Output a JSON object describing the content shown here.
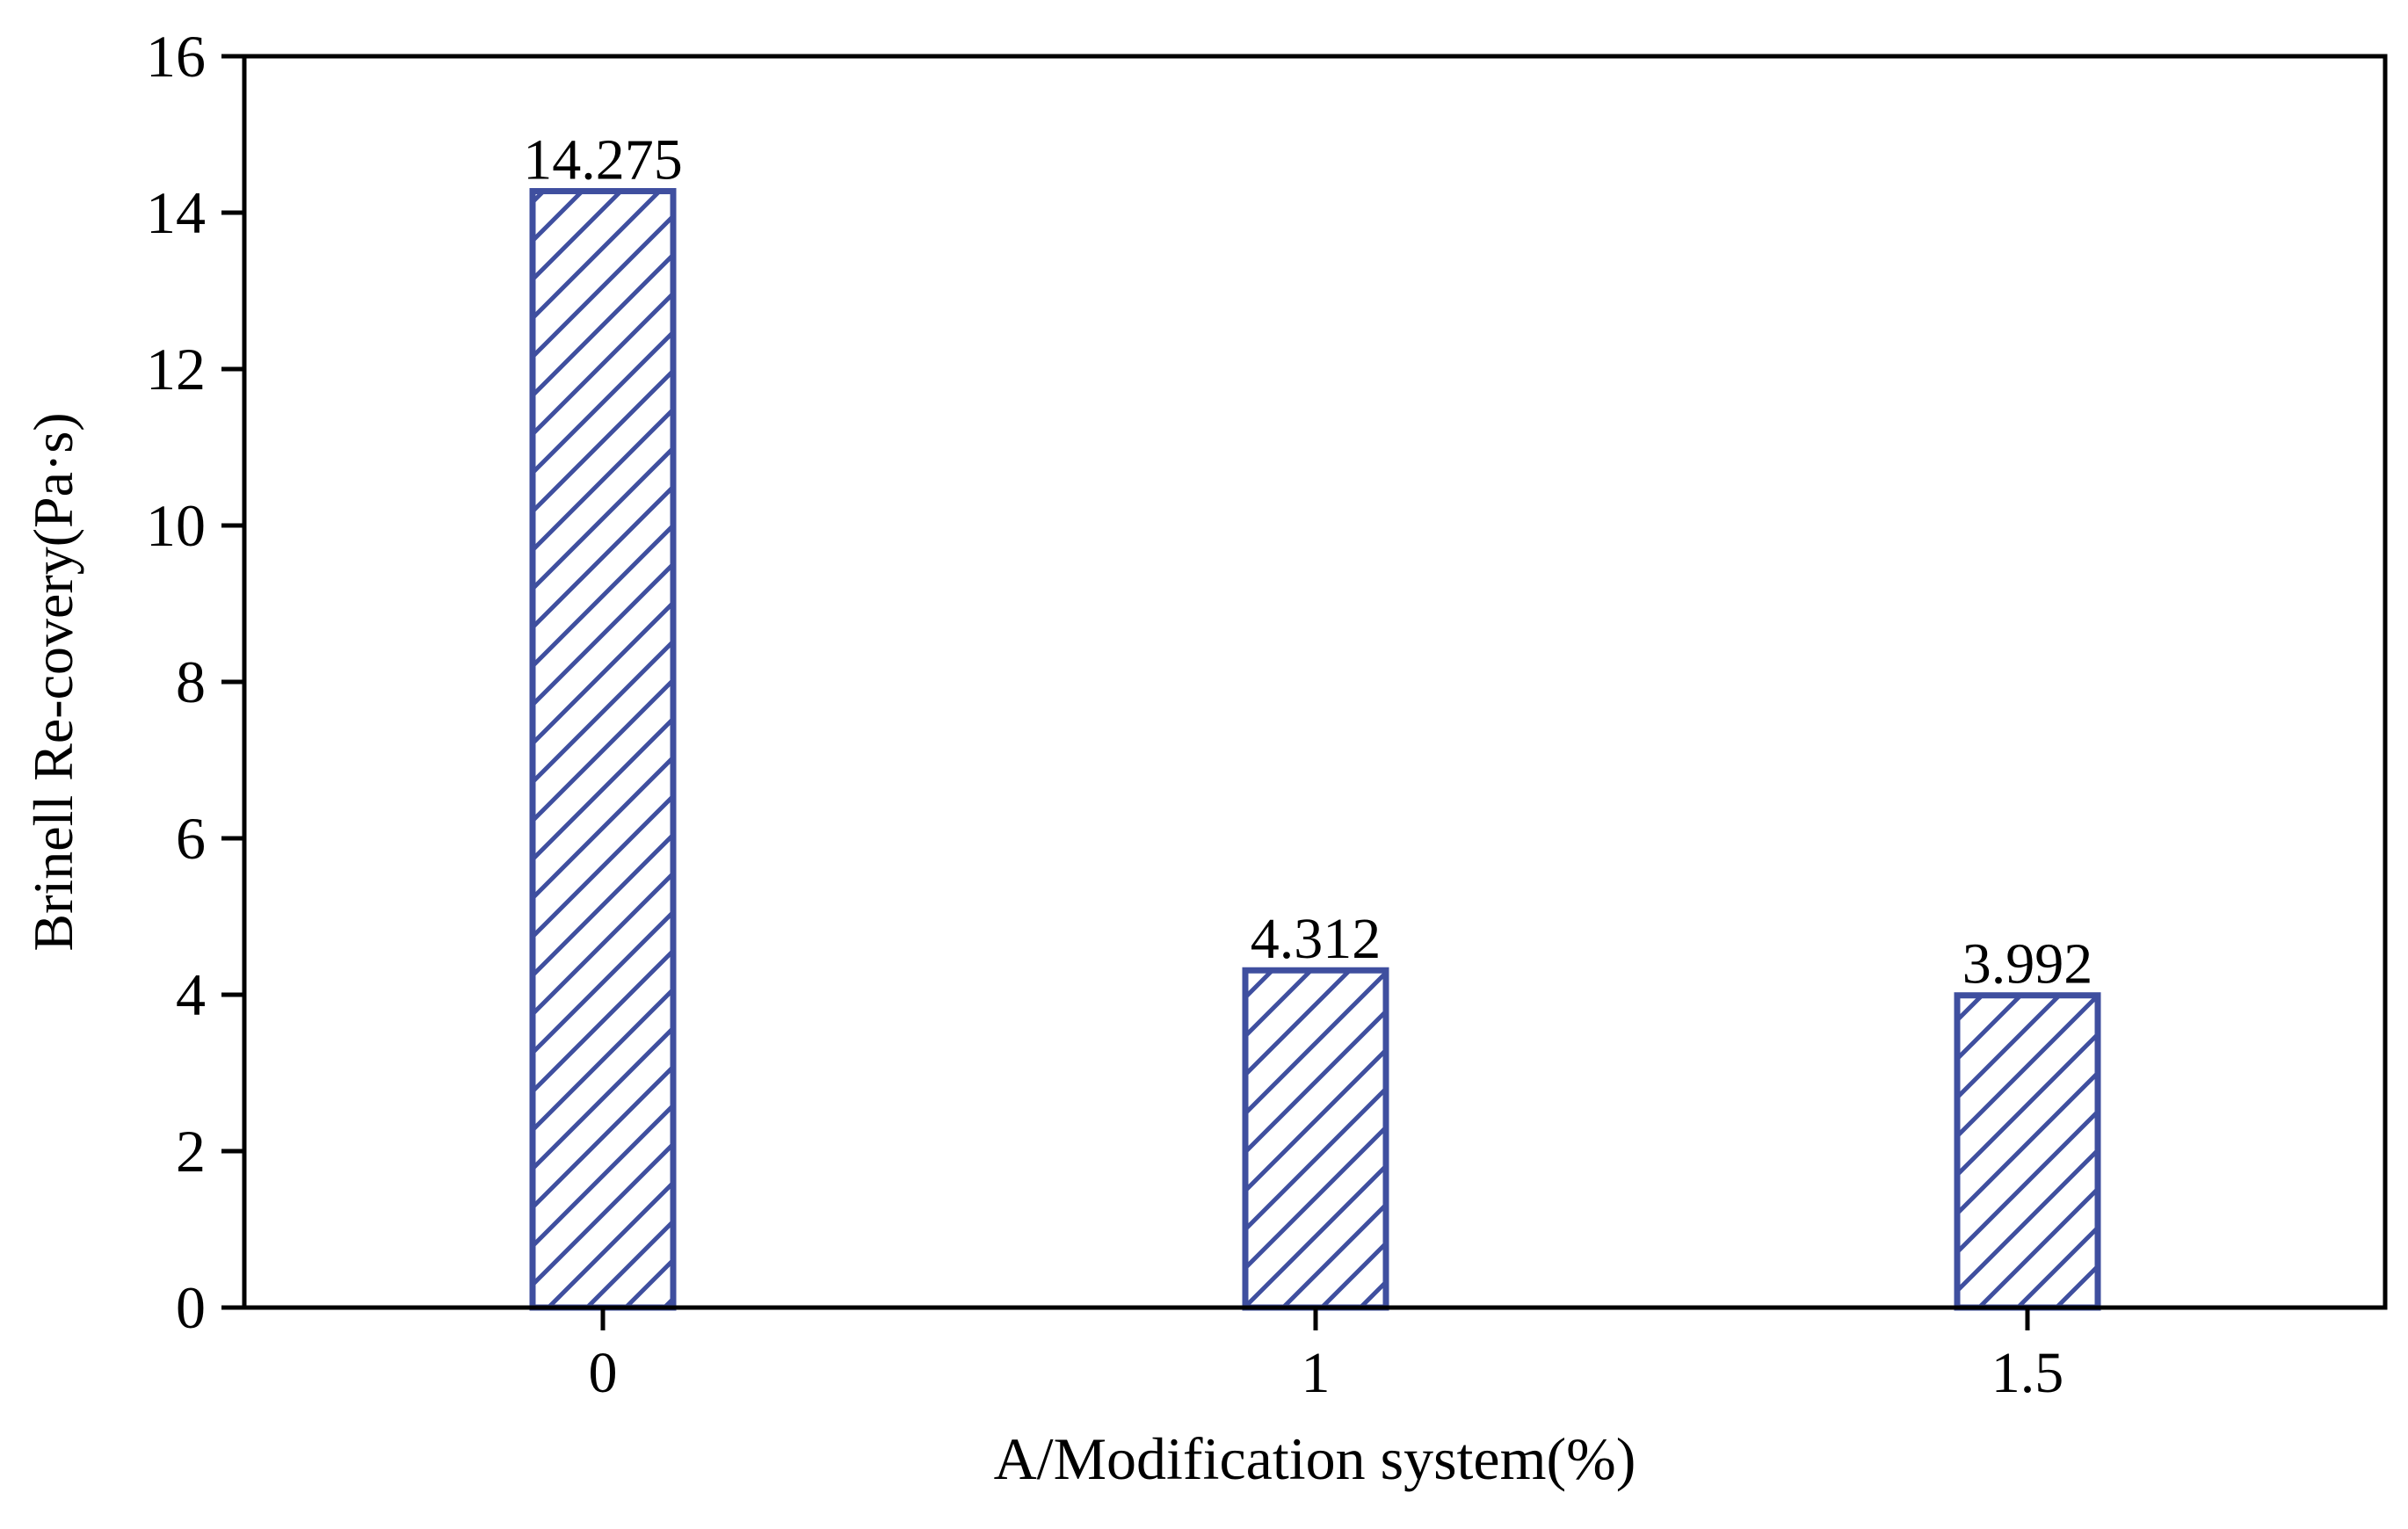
{
  "chart_data": {
    "type": "bar",
    "categories": [
      "0",
      "1",
      "1.5"
    ],
    "values": [
      14.275,
      4.312,
      3.992
    ],
    "data_labels": [
      "14.275",
      "4.312",
      "3.992"
    ],
    "xlabel": "A/Modification system(%)",
    "ylabel": "Brinell Re-covery(Pa·s)",
    "ylim": [
      0,
      16
    ],
    "yticks": [
      "0",
      "2",
      "4",
      "6",
      "8",
      "10",
      "12",
      "14",
      "16"
    ],
    "grid": false,
    "bar_style": "hatched",
    "colors": {
      "bar": "#3f4f9f",
      "axis": "#000000",
      "background": "#ffffff"
    }
  }
}
